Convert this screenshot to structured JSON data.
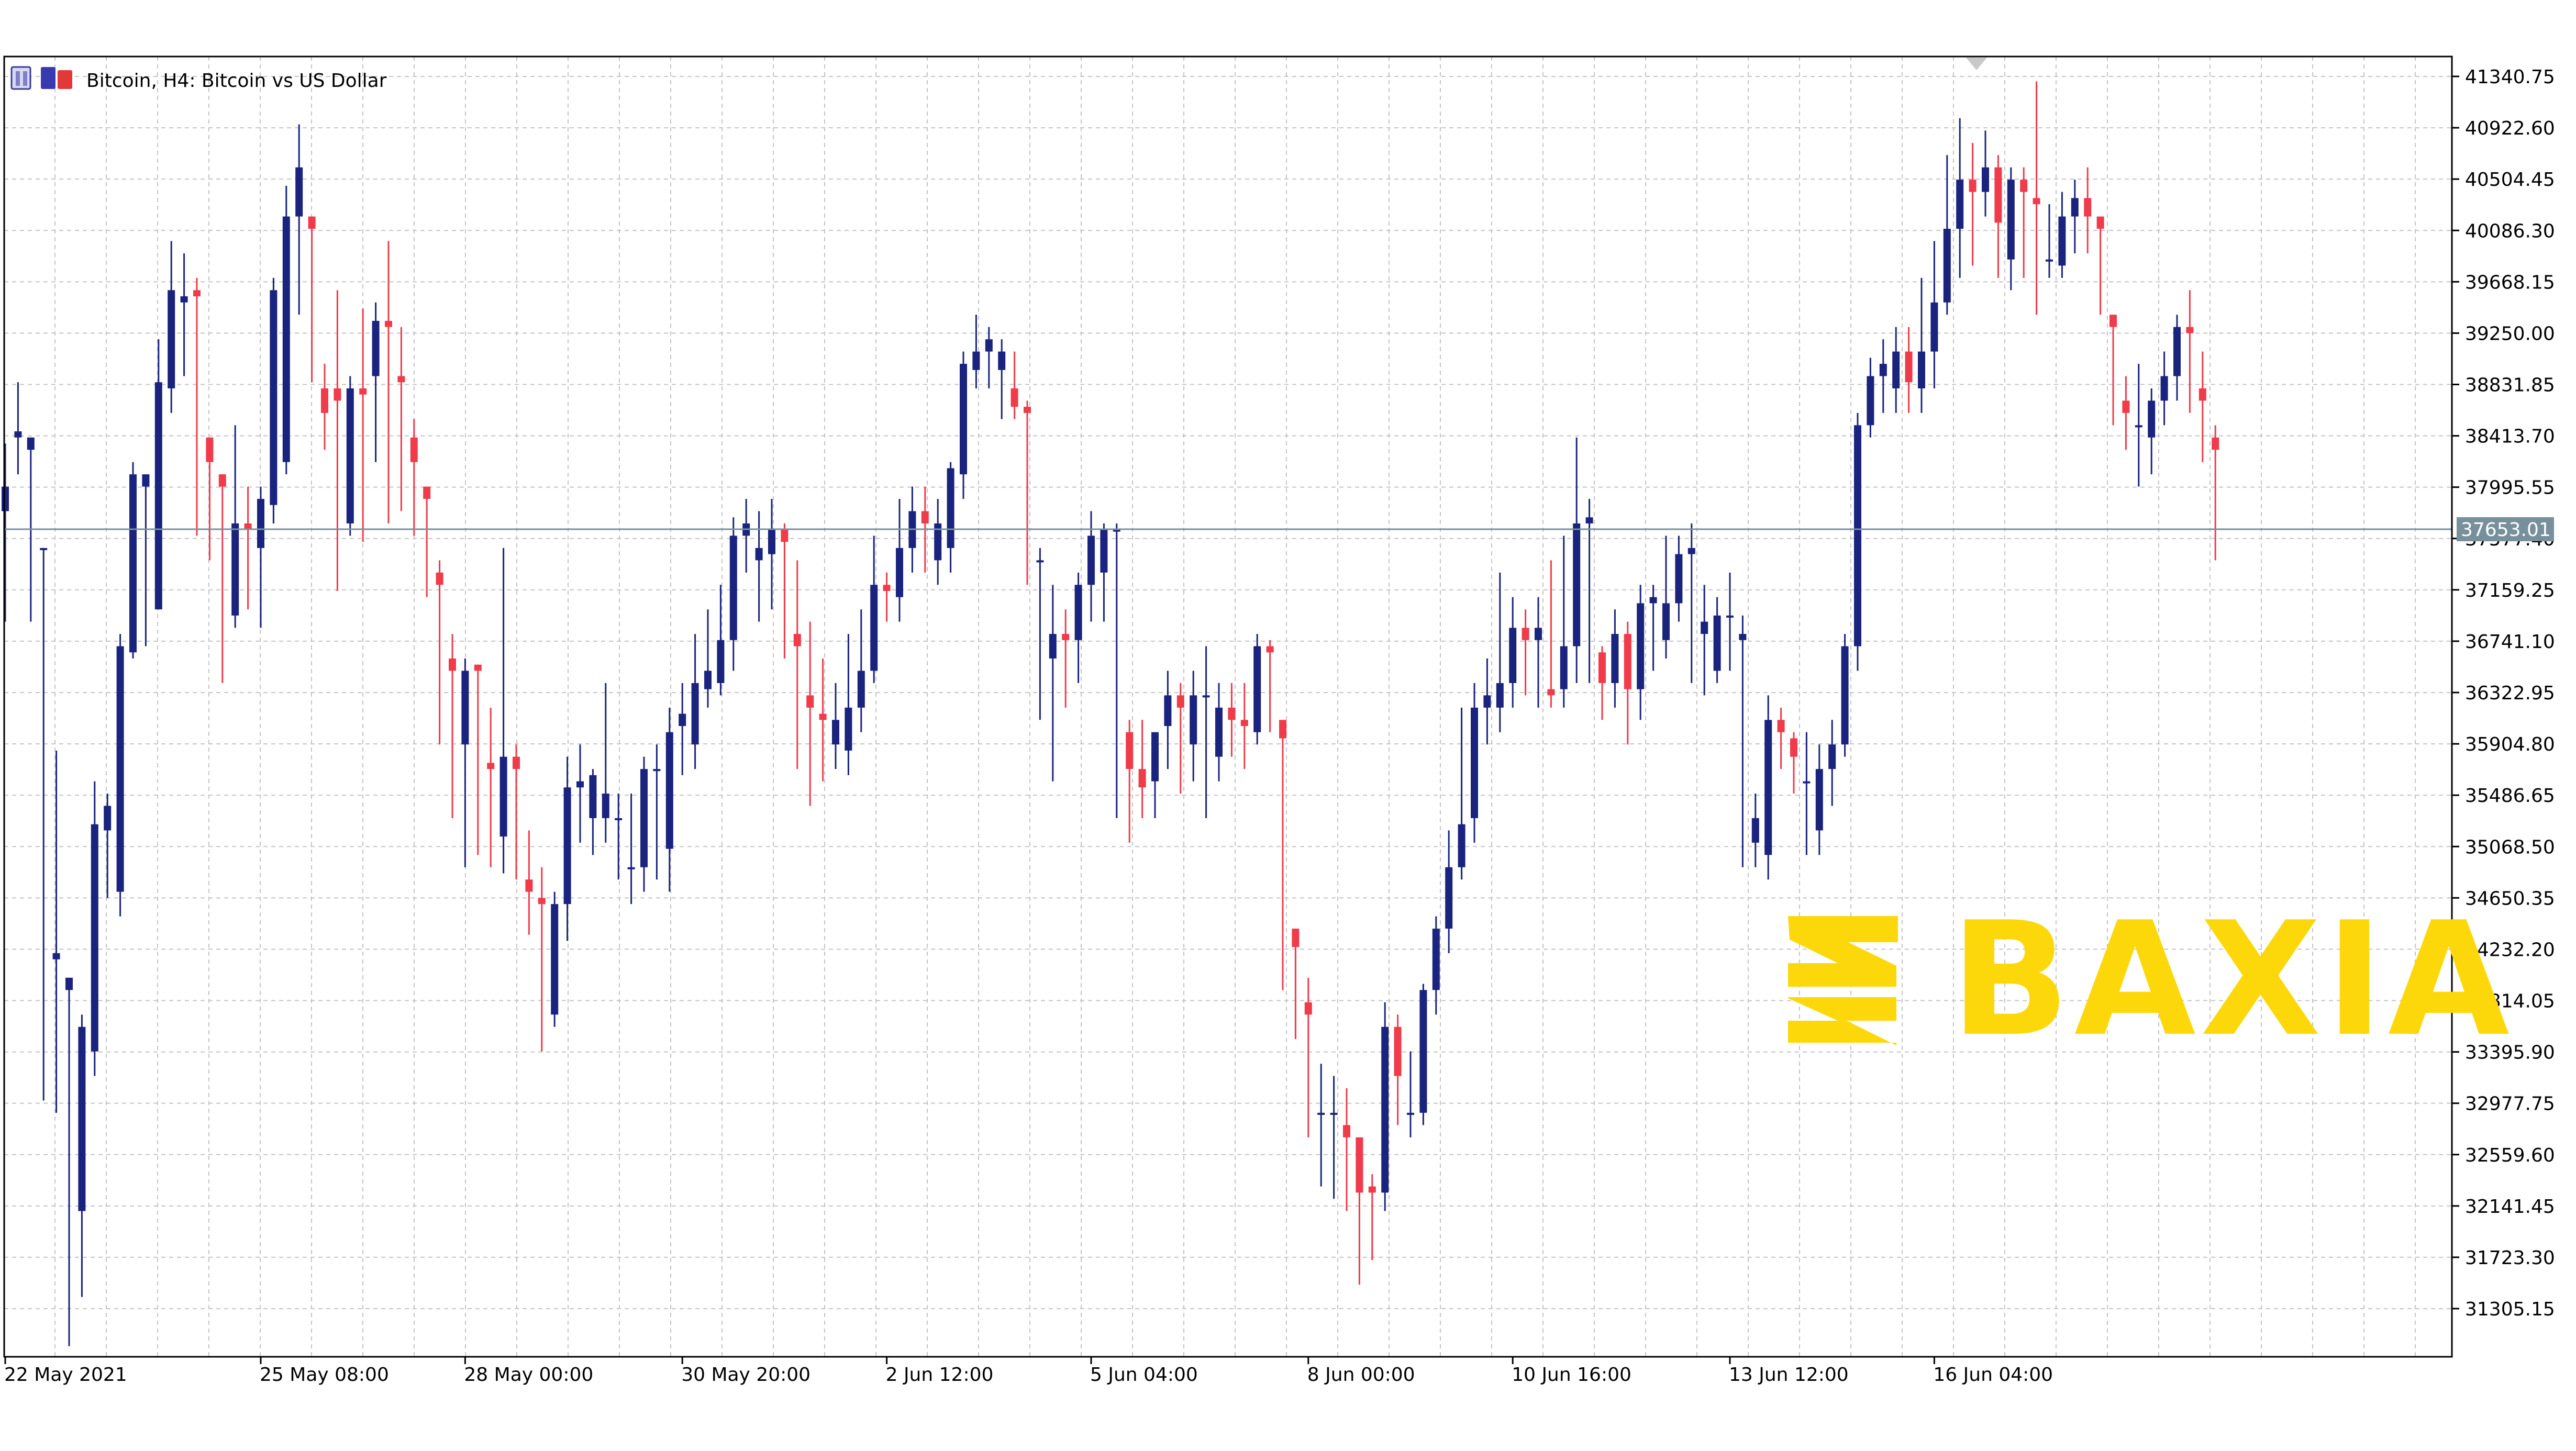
{
  "chart_data": {
    "type": "candlestick",
    "title": "Bitcoin, H4:  Bitcoin vs US Dollar",
    "interval_label": "H4",
    "ylim": [
      30900,
      41500
    ],
    "y_ticks": [
      "41340.75",
      "40922.60",
      "40504.45",
      "40086.30",
      "39668.15",
      "39250.00",
      "38831.85",
      "38413.70",
      "37995.55",
      "37577.40",
      "37159.25",
      "36741.10",
      "36322.95",
      "35904.80",
      "35486.65",
      "35068.50",
      "34650.35",
      "34232.20",
      "33814.05",
      "33395.90",
      "32977.75",
      "32559.60",
      "32141.45",
      "31723.30",
      "31305.15"
    ],
    "x_ticks": [
      {
        "label": "22 May 2021",
        "index": 0
      },
      {
        "label": "25 May 08:00",
        "index": 20
      },
      {
        "label": "28 May 00:00",
        "index": 36
      },
      {
        "label": "30 May 20:00",
        "index": 53
      },
      {
        "label": "2 Jun 12:00",
        "index": 69
      },
      {
        "label": "5 Jun 04:00",
        "index": 85
      },
      {
        "label": "8 Jun 00:00",
        "index": 102
      },
      {
        "label": "10 Jun 16:00",
        "index": 118
      },
      {
        "label": "13 Jun 12:00",
        "index": 135
      },
      {
        "label": "16 Jun 04:00",
        "index": 151
      }
    ],
    "current_price": "37653.01",
    "bull_color": "#1a237e",
    "bear_color": "#ef3b4a",
    "grid": true,
    "candles": [
      [
        37800,
        38000,
        37800,
        38350,
        36900
      ],
      [
        38400,
        38450,
        38000,
        38850,
        38100
      ],
      [
        38300,
        38400,
        37400,
        38400,
        36900
      ],
      [
        37500,
        37500,
        34350,
        37500,
        33000
      ],
      [
        34150,
        34200,
        33850,
        35850,
        32900
      ],
      [
        33900,
        34000,
        32100,
        34000,
        31000
      ],
      [
        32100,
        33600,
        32100,
        33700,
        31400
      ],
      [
        33400,
        35250,
        33400,
        35600,
        33200
      ],
      [
        35200,
        35400,
        34800,
        35500,
        34650
      ],
      [
        34700,
        36700,
        34700,
        36800,
        34500
      ],
      [
        36650,
        38100,
        36650,
        38200,
        36600
      ],
      [
        38000,
        38100,
        37000,
        38100,
        36700
      ],
      [
        37000,
        38850,
        37000,
        39200,
        37000
      ],
      [
        38800,
        39600,
        38800,
        40000,
        38600
      ],
      [
        39500,
        39550,
        39300,
        39900,
        38900
      ],
      [
        39600,
        39550,
        38350,
        39700,
        37600
      ],
      [
        38400,
        38200,
        38100,
        38400,
        37400
      ],
      [
        38100,
        38000,
        37000,
        38100,
        36400
      ],
      [
        36950,
        37700,
        36950,
        38500,
        36850
      ],
      [
        37700,
        37650,
        37500,
        38000,
        37000
      ],
      [
        37500,
        37900,
        37450,
        38000,
        36850
      ],
      [
        37850,
        39600,
        37850,
        39700,
        37700
      ],
      [
        38200,
        40200,
        38200,
        40450,
        38100
      ],
      [
        40200,
        40600,
        39600,
        40950,
        39400
      ],
      [
        40200,
        40100,
        38850,
        40200,
        38850
      ],
      [
        38800,
        38600,
        38700,
        39000,
        38300
      ],
      [
        38800,
        38700,
        37750,
        39600,
        37150
      ],
      [
        37700,
        38800,
        37700,
        38900,
        37600
      ],
      [
        38800,
        38750,
        37950,
        39450,
        37550
      ],
      [
        38900,
        39350,
        38700,
        39500,
        38200
      ],
      [
        39350,
        39300,
        38900,
        40000,
        37700
      ],
      [
        38900,
        38850,
        38350,
        39300,
        37800
      ],
      [
        38400,
        38200,
        38050,
        38550,
        37600
      ],
      [
        38000,
        37900,
        37200,
        38000,
        37100
      ],
      [
        37300,
        37200,
        36600,
        37400,
        35900
      ],
      [
        36600,
        36500,
        35900,
        36800,
        35300
      ],
      [
        35900,
        36500,
        35900,
        36600,
        34900
      ],
      [
        36550,
        36500,
        35800,
        36550,
        35000
      ],
      [
        35750,
        35700,
        35200,
        36200,
        34900
      ],
      [
        35150,
        35800,
        35150,
        37500,
        34850
      ],
      [
        35800,
        35700,
        34800,
        35900,
        34800
      ],
      [
        34800,
        34700,
        34650,
        35200,
        34350
      ],
      [
        34650,
        34600,
        33650,
        34900,
        33400
      ],
      [
        33700,
        34600,
        33700,
        34700,
        33600
      ],
      [
        34600,
        35550,
        34600,
        35800,
        34300
      ],
      [
        35550,
        35600,
        35300,
        35900,
        35100
      ],
      [
        35300,
        35650,
        35250,
        35700,
        35000
      ],
      [
        35300,
        35500,
        35200,
        36400,
        35100
      ],
      [
        35300,
        35300,
        34850,
        35500,
        34800
      ],
      [
        34900,
        34900,
        34850,
        35500,
        34600
      ],
      [
        34900,
        35700,
        34900,
        35800,
        34700
      ],
      [
        35700,
        35700,
        35000,
        35900,
        34800
      ],
      [
        35050,
        36000,
        35050,
        36200,
        34700
      ],
      [
        36050,
        36150,
        35800,
        36400,
        35650
      ],
      [
        35900,
        36400,
        35900,
        36800,
        35700
      ],
      [
        36350,
        36500,
        36350,
        37000,
        36200
      ],
      [
        36400,
        36750,
        36400,
        37200,
        36300
      ],
      [
        36750,
        37600,
        36750,
        37750,
        36500
      ],
      [
        37600,
        37700,
        37400,
        37900,
        37300
      ],
      [
        37400,
        37500,
        37200,
        37800,
        36900
      ],
      [
        37450,
        37650,
        37200,
        37900,
        37000
      ],
      [
        37650,
        37550,
        36800,
        37700,
        36600
      ],
      [
        36800,
        36700,
        36350,
        37400,
        35700
      ],
      [
        36300,
        36200,
        36150,
        36900,
        35400
      ],
      [
        36150,
        36100,
        35900,
        36600,
        35600
      ],
      [
        35900,
        36100,
        35800,
        36400,
        35700
      ],
      [
        35850,
        36200,
        35850,
        36800,
        35650
      ],
      [
        36200,
        36500,
        36200,
        37000,
        36000
      ],
      [
        36500,
        37200,
        36500,
        37600,
        36400
      ],
      [
        37200,
        37150,
        37100,
        37300,
        36900
      ],
      [
        37100,
        37500,
        37050,
        37900,
        36900
      ],
      [
        37500,
        37800,
        37500,
        38000,
        37300
      ],
      [
        37800,
        37700,
        37450,
        38000,
        37300
      ],
      [
        37400,
        37700,
        37350,
        37900,
        37200
      ],
      [
        37500,
        38150,
        37450,
        38200,
        37300
      ],
      [
        38100,
        39000,
        38100,
        39100,
        37900
      ],
      [
        38950,
        39100,
        38800,
        39400,
        38800
      ],
      [
        39100,
        39200,
        38950,
        39300,
        38800
      ],
      [
        38950,
        39100,
        38750,
        39200,
        38550
      ],
      [
        38800,
        38650,
        38600,
        39100,
        38550
      ],
      [
        38650,
        38600,
        37400,
        38700,
        37200
      ],
      [
        37400,
        37400,
        36600,
        37500,
        36100
      ],
      [
        36600,
        36800,
        36500,
        37200,
        35600
      ],
      [
        36800,
        36750,
        36700,
        37000,
        36200
      ],
      [
        36750,
        37200,
        36650,
        37300,
        36400
      ],
      [
        37200,
        37600,
        37100,
        37800,
        36900
      ],
      [
        37300,
        37650,
        37100,
        37700,
        36900
      ],
      [
        37650,
        37650,
        36000,
        37700,
        35300
      ],
      [
        36000,
        35700,
        35650,
        36100,
        35100
      ],
      [
        35700,
        35550,
        35600,
        36100,
        35300
      ],
      [
        35600,
        36000,
        35550,
        36000,
        35300
      ],
      [
        36050,
        36300,
        36000,
        36500,
        35700
      ],
      [
        36300,
        36200,
        35800,
        36400,
        35500
      ],
      [
        35900,
        36300,
        35850,
        36500,
        35600
      ],
      [
        36300,
        36300,
        35800,
        36700,
        35300
      ],
      [
        35800,
        36200,
        35800,
        36400,
        35600
      ],
      [
        36200,
        36100,
        36000,
        36400,
        35800
      ],
      [
        36100,
        36050,
        36000,
        36400,
        35700
      ],
      [
        36000,
        36700,
        36000,
        36800,
        35900
      ],
      [
        36700,
        36650,
        36150,
        36750,
        36000
      ],
      [
        36100,
        35950,
        34400,
        36000,
        33900
      ],
      [
        34400,
        34250,
        33800,
        34400,
        33500
      ],
      [
        33800,
        33700,
        32900,
        34000,
        32700
      ],
      [
        32900,
        32900,
        32850,
        33300,
        32300
      ],
      [
        32900,
        32900,
        32700,
        33200,
        32200
      ],
      [
        32800,
        32700,
        32700,
        33100,
        32100
      ],
      [
        32700,
        32250,
        32250,
        32700,
        31500
      ],
      [
        32300,
        32250,
        32300,
        32400,
        31700
      ],
      [
        32250,
        33600,
        32250,
        33800,
        32100
      ],
      [
        33600,
        33200,
        32900,
        33700,
        32800
      ],
      [
        32900,
        32900,
        32900,
        33400,
        32700
      ],
      [
        32900,
        33900,
        32900,
        33950,
        32800
      ],
      [
        33900,
        34400,
        33900,
        34500,
        33700
      ],
      [
        34400,
        34900,
        34400,
        35200,
        34200
      ],
      [
        34900,
        35250,
        34900,
        36200,
        34800
      ],
      [
        35300,
        36200,
        35300,
        36400,
        35100
      ],
      [
        36200,
        36300,
        36200,
        36600,
        35900
      ],
      [
        36200,
        36400,
        36200,
        37300,
        36000
      ],
      [
        36400,
        36850,
        36400,
        37100,
        36200
      ],
      [
        36850,
        36750,
        36700,
        37000,
        36300
      ],
      [
        36750,
        36850,
        36350,
        37100,
        36200
      ],
      [
        36350,
        36300,
        36250,
        37400,
        36200
      ],
      [
        36350,
        36700,
        36300,
        37600,
        36200
      ],
      [
        36700,
        37700,
        36700,
        38400,
        36400
      ],
      [
        37700,
        37750,
        36650,
        37900,
        36400
      ],
      [
        36650,
        36400,
        36300,
        36700,
        36100
      ],
      [
        36400,
        36800,
        36350,
        37000,
        36200
      ],
      [
        36800,
        36350,
        36300,
        36900,
        35900
      ],
      [
        36350,
        37050,
        36350,
        37200,
        36100
      ],
      [
        37050,
        37100,
        36750,
        37200,
        36500
      ],
      [
        36750,
        37050,
        36700,
        37600,
        36600
      ],
      [
        37050,
        37450,
        37000,
        37600,
        36900
      ],
      [
        37450,
        37500,
        36800,
        37700,
        36400
      ],
      [
        36800,
        36900,
        36500,
        37200,
        36300
      ],
      [
        36500,
        36950,
        36500,
        37100,
        36400
      ],
      [
        36950,
        36950,
        36750,
        37300,
        36500
      ],
      [
        36750,
        36800,
        35100,
        36950,
        34900
      ],
      [
        35100,
        35300,
        35000,
        35500,
        34900
      ],
      [
        35000,
        36100,
        35000,
        36300,
        34800
      ],
      [
        36100,
        36000,
        35950,
        36200,
        35700
      ],
      [
        35950,
        35800,
        35600,
        36000,
        35500
      ],
      [
        35600,
        35600,
        35200,
        36000,
        35000
      ],
      [
        35200,
        35700,
        35100,
        35900,
        35000
      ],
      [
        35700,
        35900,
        35600,
        36100,
        35400
      ],
      [
        35900,
        36700,
        35900,
        36800,
        35800
      ],
      [
        36700,
        38500,
        36700,
        38600,
        36500
      ],
      [
        38500,
        38900,
        38500,
        39050,
        38400
      ],
      [
        38900,
        39000,
        38800,
        39200,
        38600
      ],
      [
        38800,
        39100,
        38700,
        39300,
        38600
      ],
      [
        39100,
        38850,
        38700,
        39300,
        38600
      ],
      [
        38800,
        39100,
        38750,
        39700,
        38600
      ],
      [
        39100,
        39500,
        39100,
        40000,
        38800
      ],
      [
        39500,
        40100,
        39500,
        40700,
        39400
      ],
      [
        40100,
        40500,
        40100,
        41000,
        39700
      ],
      [
        40500,
        40400,
        40200,
        40800,
        39800
      ],
      [
        40400,
        40600,
        40400,
        40900,
        40200
      ],
      [
        40600,
        40150,
        39850,
        40700,
        39700
      ],
      [
        39850,
        40500,
        39850,
        40600,
        39600
      ],
      [
        40500,
        40400,
        39900,
        40600,
        39700
      ],
      [
        40350,
        40300,
        39850,
        41300,
        39400
      ],
      [
        39850,
        39850,
        39800,
        40300,
        39700
      ],
      [
        39800,
        40200,
        39800,
        40400,
        39700
      ],
      [
        40200,
        40350,
        40200,
        40500,
        39900
      ],
      [
        40350,
        40200,
        40200,
        40600,
        39900
      ],
      [
        40200,
        40100,
        39400,
        40200,
        39400
      ],
      [
        39400,
        39300,
        38700,
        39400,
        38500
      ],
      [
        38700,
        38600,
        38500,
        38900,
        38300
      ],
      [
        38500,
        38500,
        38400,
        39000,
        38000
      ],
      [
        38400,
        38700,
        38300,
        38800,
        38100
      ],
      [
        38700,
        38900,
        38600,
        39100,
        38500
      ],
      [
        38900,
        39300,
        38800,
        39400,
        38700
      ],
      [
        39300,
        39250,
        38800,
        39600,
        38600
      ],
      [
        38800,
        38700,
        38400,
        39100,
        38200
      ],
      [
        38400,
        38300,
        37800,
        38500,
        37400
      ]
    ]
  },
  "watermark": {
    "brand_text": "BAXIA",
    "color": "#fcd80b"
  }
}
